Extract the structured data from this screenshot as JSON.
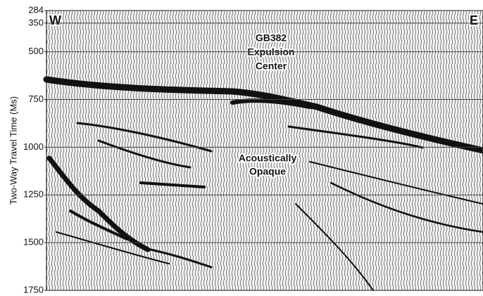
{
  "chart_data": {
    "type": "seismic",
    "y_label": "Two-Way Travel Time (Ms)",
    "ylim": [
      284,
      1750
    ],
    "yticks": [
      284,
      350,
      500,
      750,
      1000,
      1250,
      1500,
      1750
    ],
    "grid": true,
    "annotations": [
      "W",
      "E",
      "GB382",
      "Expulsion",
      "Center",
      "Acoustically",
      "Opaque"
    ]
  }
}
